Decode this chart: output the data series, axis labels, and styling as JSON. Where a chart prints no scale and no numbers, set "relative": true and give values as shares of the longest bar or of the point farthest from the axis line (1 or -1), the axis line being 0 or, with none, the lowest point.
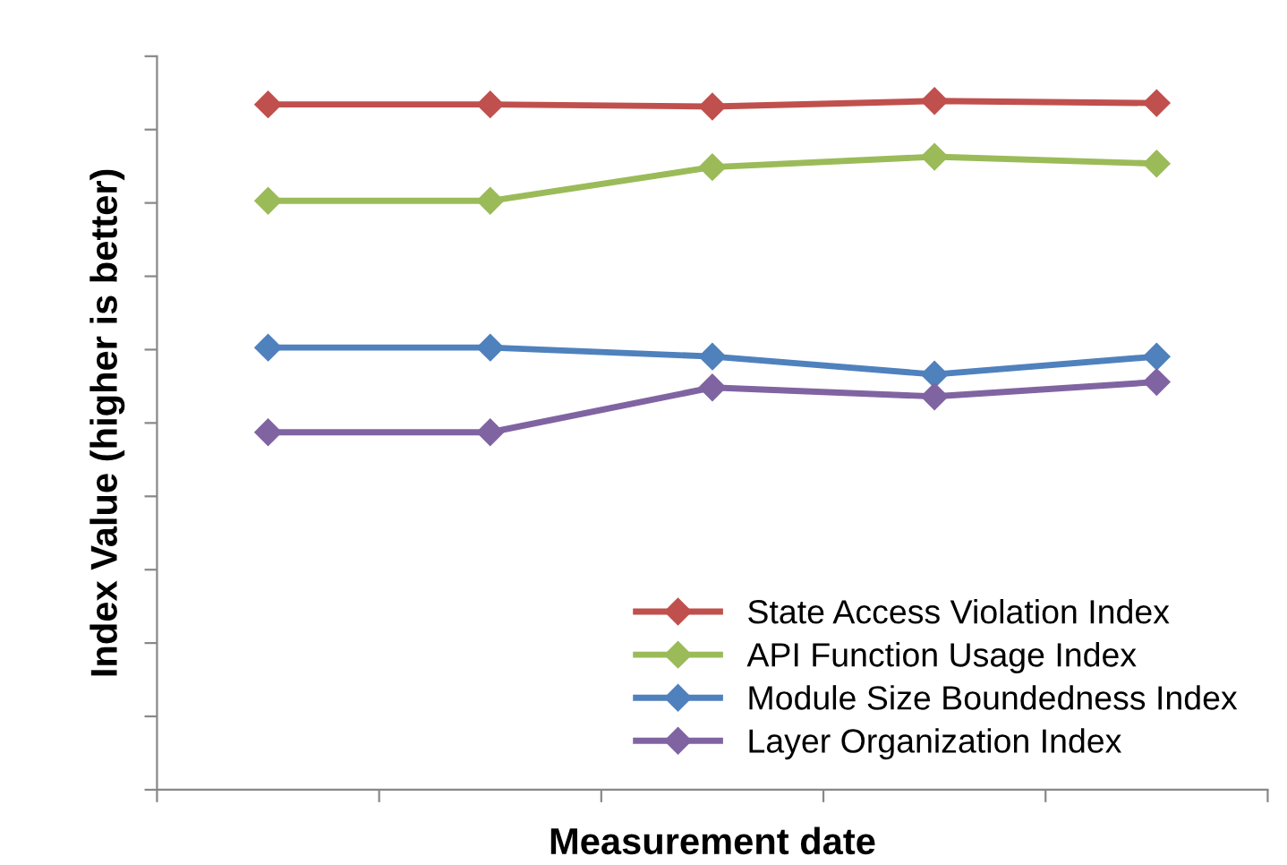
{
  "chart_data": {
    "type": "line",
    "xlabel": "Measurement date",
    "ylabel": "Index Value (higher is better)",
    "categories": [
      null,
      null,
      null,
      null,
      null
    ],
    "relative": true,
    "marker": "diamond",
    "line_style": "solid",
    "grid": false,
    "legend": "bottom right",
    "tick_labels": false,
    "series": [
      {
        "name": "State Access Violation Index",
        "color": "#c0504d",
        "values": [
          0.995,
          0.995,
          0.992,
          1,
          0.997
        ]
      },
      {
        "name": "API Function Usage Index",
        "color": "#9bbb59",
        "values": [
          0.855,
          0.855,
          0.904,
          0.919,
          0.909
        ]
      },
      {
        "name": "Module Size Boundedness Index",
        "color": "#4f81bd",
        "values": [
          0.642,
          0.642,
          0.629,
          0.603,
          0.629
        ]
      },
      {
        "name": "Layer Organization Index",
        "color": "#8064a2",
        "values": [
          0.519,
          0.519,
          0.584,
          0.571,
          0.592
        ]
      }
    ]
  }
}
